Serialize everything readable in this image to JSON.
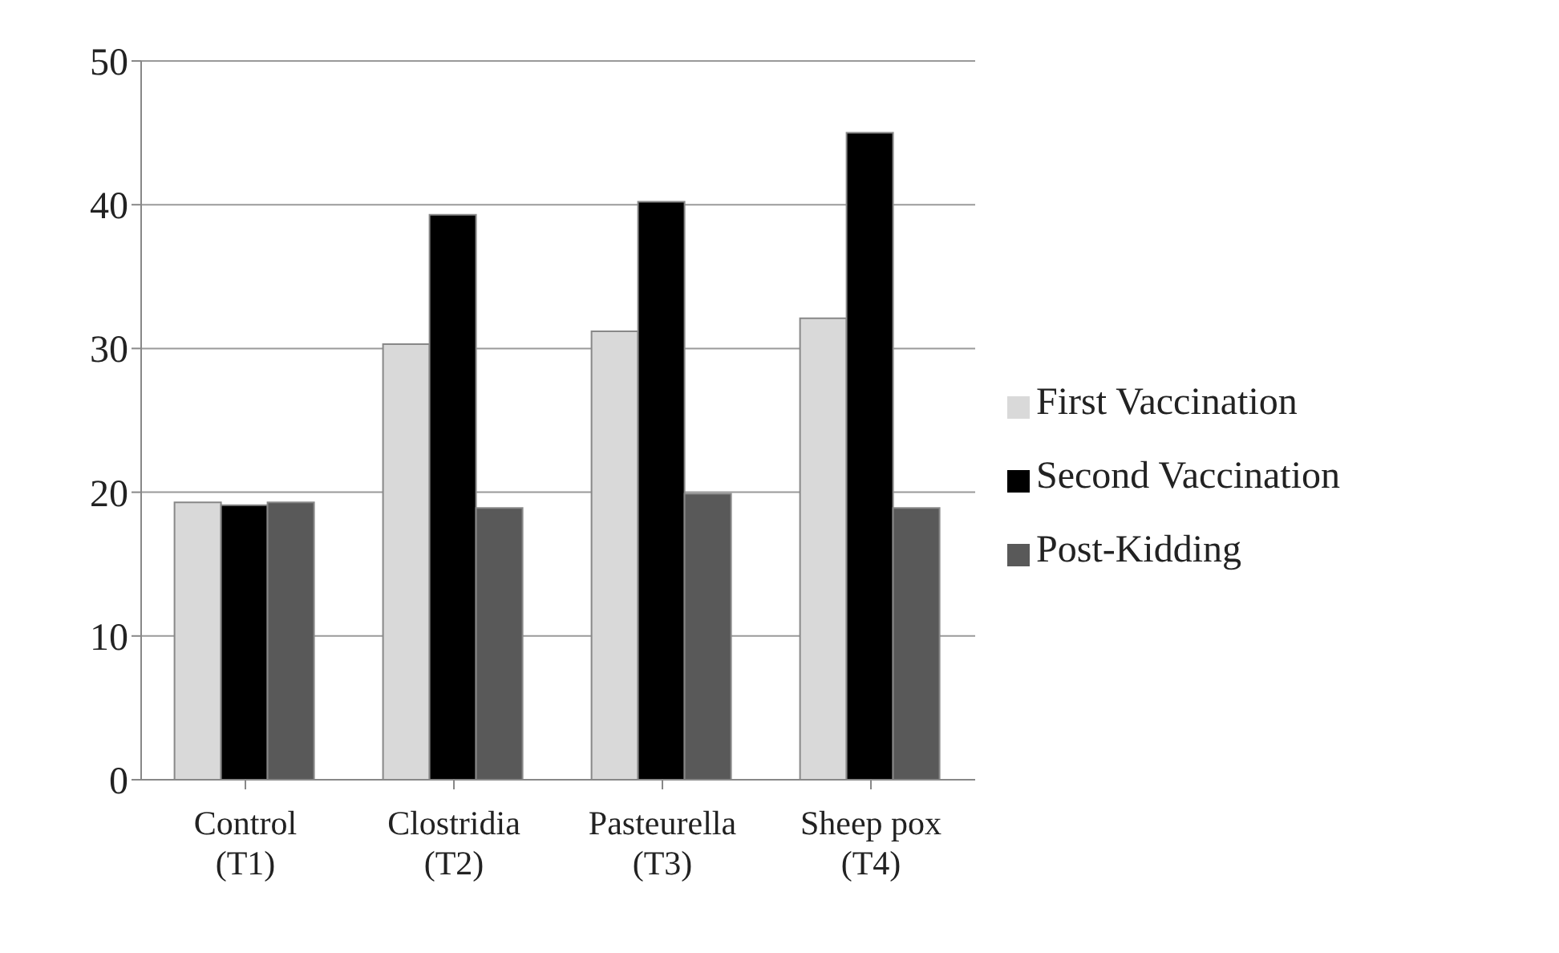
{
  "chart_data": {
    "type": "bar",
    "categories": [
      "Control\n(T1)",
      "Clostridia\n(T2)",
      "Pasteurella\n(T3)",
      "Sheep pox\n(T4)"
    ],
    "series": [
      {
        "name": "First Vaccination",
        "color": "#d9d9d9",
        "values": [
          19.3,
          30.3,
          31.2,
          32.1
        ]
      },
      {
        "name": "Second Vaccination",
        "color": "#000000",
        "values": [
          19.1,
          39.3,
          40.2,
          45.0
        ]
      },
      {
        "name": "Post-Kidding",
        "color": "#595959",
        "values": [
          19.3,
          18.9,
          19.9,
          18.9
        ]
      }
    ],
    "ylim": [
      0,
      50
    ],
    "yticks": [
      0,
      10,
      20,
      30,
      40,
      50
    ],
    "grid": "y",
    "legend": "right"
  }
}
